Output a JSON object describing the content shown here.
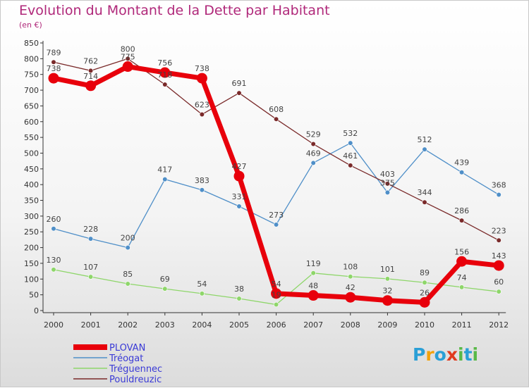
{
  "header": {
    "title": "Evolution du Montant de la Dette par Habitant",
    "subtitle": "(en €)"
  },
  "logo": {
    "text": "Proxiti",
    "colors": [
      "#2a9fd6",
      "#f2a20c",
      "#2a9fd6",
      "#e03a1e",
      "#58b947",
      "#2a9fd6",
      "#58b947"
    ]
  },
  "chart_data": {
    "type": "line",
    "title": "Evolution du Montant de la Dette par Habitant",
    "subtitle": "(en €)",
    "xlabel": "",
    "ylabel": "",
    "x": [
      "2000",
      "2001",
      "2002",
      "2003",
      "2004",
      "2005",
      "2006",
      "2007",
      "2008",
      "2009",
      "2010",
      "2011",
      "2012"
    ],
    "ylim": [
      0,
      850
    ],
    "yticks": [
      0,
      50,
      100,
      150,
      200,
      250,
      300,
      350,
      400,
      450,
      500,
      550,
      600,
      650,
      700,
      750,
      800,
      850
    ],
    "grid": false,
    "legend": "bottom-left",
    "series": [
      {
        "name": "PLOVAN",
        "color": "#e8000b",
        "values": [
          738,
          714,
          775,
          756,
          738,
          427,
          54,
          48,
          42,
          32,
          26,
          156,
          143
        ]
      },
      {
        "name": "Tréogat",
        "color": "#4f8fc8",
        "values": [
          260,
          228,
          200,
          417,
          383,
          331,
          273,
          469,
          532,
          375,
          512,
          439,
          368
        ]
      },
      {
        "name": "Tréguennec",
        "color": "#8ed66a",
        "values": [
          130,
          107,
          85,
          69,
          54,
          38,
          19,
          119,
          108,
          101,
          89,
          74,
          60
        ]
      },
      {
        "name": "Pouldreuzic",
        "color": "#7a2a2a",
        "values": [
          789,
          762,
          800,
          718,
          623,
          691,
          608,
          529,
          461,
          403,
          344,
          286,
          223
        ]
      }
    ]
  }
}
